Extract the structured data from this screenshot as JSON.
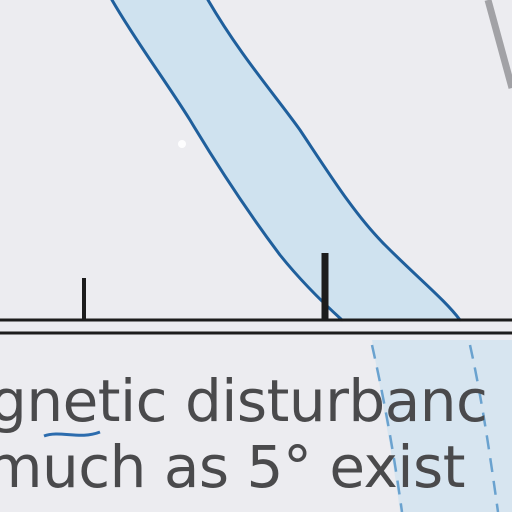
{
  "map": {
    "colors": {
      "background": "#ececf0",
      "water_fill": "#cfe2ef",
      "shoreline": "#1f5f9c",
      "scale_bar": "#1c1c1c",
      "gray_line": "#a2a2a6",
      "text": "#4a4a4c"
    },
    "note": {
      "line_1": "gnetic disturbanc",
      "line_2": "much as 5° exist"
    }
  }
}
